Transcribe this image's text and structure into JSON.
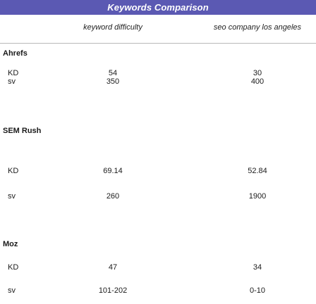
{
  "title": "Keywords Comparison",
  "columns": [
    "keyword difficulty",
    "seo company los angeles"
  ],
  "groups": [
    {
      "name": "Ahrefs",
      "rows": [
        {
          "label": "KD",
          "values": [
            "54",
            "30"
          ]
        },
        {
          "label": "sv",
          "values": [
            "350",
            "400"
          ]
        }
      ]
    },
    {
      "name": "SEM Rush",
      "rows": [
        {
          "label": "KD",
          "values": [
            "69.14",
            "52.84"
          ]
        },
        {
          "label": "sv",
          "values": [
            "260",
            "1900"
          ]
        }
      ]
    },
    {
      "name": "Moz",
      "rows": [
        {
          "label": "KD",
          "values": [
            "47",
            "34"
          ]
        },
        {
          "label": "sv",
          "values": [
            "101-202",
            "0-10"
          ]
        }
      ]
    }
  ],
  "colors": {
    "title_bar": "#5b59b3",
    "title_text": "#ffffff"
  }
}
